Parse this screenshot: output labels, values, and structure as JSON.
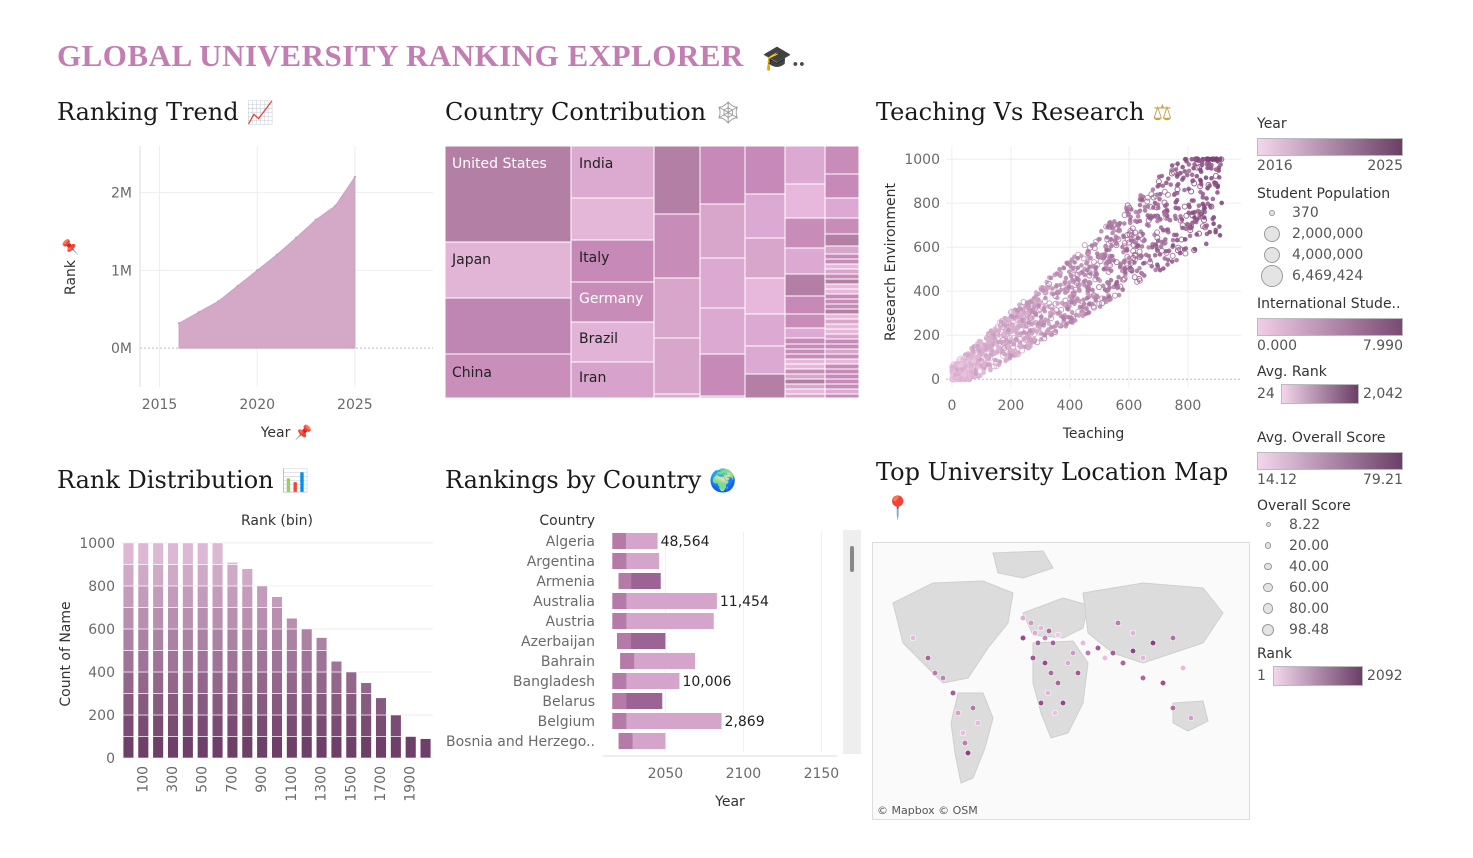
{
  "dashboard": {
    "title": "GLOBAL UNIVERSITY RANKING EXPLORER",
    "title_suffix": "🎓..",
    "brand_color": "#c27eb2"
  },
  "ranking_trend": {
    "title": "Ranking Trend",
    "icon": "chart-increasing-icon",
    "icon_glyph": "📈"
  },
  "country_contribution": {
    "title": "Country Contribution",
    "icon": "web-icon",
    "icon_glyph": "🕸"
  },
  "teaching_vs_research": {
    "title": "Teaching Vs Research",
    "icon": "balance-scale-icon",
    "icon_glyph": "⚖"
  },
  "rank_distribution": {
    "title": "Rank Distribution",
    "icon": "bar-chart-icon",
    "icon_glyph": "📊"
  },
  "rankings_by_country": {
    "title": "Rankings by Country",
    "icon": "globe-icon",
    "icon_glyph": "🌍"
  },
  "location_map": {
    "title": "Top University Location Map",
    "icon": "pushpin-icon",
    "icon_glyph": "📍",
    "attribution": "© Mapbox © OSM"
  },
  "legend": {
    "year": {
      "title": "Year",
      "min": "2016",
      "max": "2025"
    },
    "student_population": {
      "title": "Student Population",
      "values": [
        "370",
        "2,000,000",
        "4,000,000",
        "6,469,424"
      ]
    },
    "international_students": {
      "title": "International Stude..",
      "min": "0.000",
      "max": "7.990"
    },
    "avg_rank": {
      "title": "Avg. Rank",
      "min": "24",
      "max": "2,042"
    },
    "avg_overall_score": {
      "title": "Avg. Overall Score",
      "min": "14.12",
      "max": "79.21"
    },
    "overall_score": {
      "title": "Overall Score",
      "values": [
        "8.22",
        "20.00",
        "40.00",
        "60.00",
        "80.00",
        "98.48"
      ]
    },
    "rank": {
      "title": "Rank",
      "min": "1",
      "max": "2092"
    }
  },
  "chart_data": [
    {
      "id": "ranking-trend",
      "type": "area",
      "xlabel": "Year",
      "ylabel": "Rank",
      "x": [
        2016,
        2017,
        2018,
        2019,
        2020,
        2021,
        2022,
        2023,
        2024,
        2025
      ],
      "values": [
        320000,
        460000,
        600000,
        800000,
        1000000,
        1200000,
        1420000,
        1650000,
        1830000,
        2200000
      ],
      "xticks": [
        "2015",
        "2020",
        "2025"
      ],
      "yticks": [
        "0M",
        "1M",
        "2M"
      ],
      "xlim": [
        2014,
        2029
      ],
      "ylim": [
        -500000,
        2600000
      ]
    },
    {
      "id": "country-contribution",
      "type": "treemap",
      "labels": [
        "United States",
        "India",
        "Japan",
        "Italy",
        "Germany",
        "Brazil",
        "China",
        "Iran"
      ],
      "colors": [
        "#b37fa4",
        "#d9a6cb",
        "#e8b8dc",
        "#c689b8",
        "#dba9d1",
        "#c78db8"
      ]
    },
    {
      "id": "teaching-vs-research",
      "type": "scatter",
      "xlabel": "Teaching",
      "ylabel": "Research Environment",
      "xticks": [
        "0",
        "200",
        "400",
        "600",
        "800"
      ],
      "yticks": [
        "0",
        "200",
        "400",
        "600",
        "800",
        "1000"
      ],
      "xlim": [
        -20,
        980
      ],
      "ylim": [
        -40,
        1060
      ]
    },
    {
      "id": "rank-distribution",
      "type": "bar",
      "title": "Rank (bin)",
      "ylabel": "Count of Name",
      "categories": [
        "0",
        "100",
        "200",
        "300",
        "400",
        "500",
        "600",
        "700",
        "800",
        "900",
        "1000",
        "1100",
        "1200",
        "1300",
        "1400",
        "1500",
        "1600",
        "1700",
        "1800",
        "1900",
        "2000"
      ],
      "xtick_labels": [
        "100",
        "300",
        "500",
        "700",
        "900",
        "1100",
        "1300",
        "1500",
        "1700",
        "1900"
      ],
      "values": [
        1000,
        1000,
        1000,
        1000,
        1000,
        1000,
        1000,
        910,
        880,
        800,
        750,
        650,
        600,
        560,
        450,
        400,
        350,
        280,
        200,
        100,
        90
      ],
      "yticks": [
        "0",
        "200",
        "400",
        "600",
        "800",
        "1000"
      ],
      "ylim": [
        0,
        1060
      ]
    },
    {
      "id": "rankings-by-country",
      "type": "bar",
      "orientation": "horizontal",
      "header": "Country",
      "xlabel": "Year",
      "categories": [
        "Algeria",
        "Argentina",
        "Armenia",
        "Australia",
        "Austria",
        "Azerbaijan",
        "Bahrain",
        "Bangladesh",
        "Belarus",
        "Belgium",
        "Bosnia and Herzego.."
      ],
      "start": [
        2016,
        2016,
        2020,
        2016,
        2016,
        2019,
        2021,
        2016,
        2016,
        2016,
        2020
      ],
      "end": [
        2045,
        2046,
        2047,
        2083,
        2081,
        2050,
        2069,
        2059,
        2048,
        2086,
        2050
      ],
      "labels": [
        "48,564",
        "",
        "",
        "11,454",
        "",
        "",
        "",
        "10,006",
        "",
        "2,869",
        ""
      ],
      "xticks": [
        "2050",
        "2100",
        "2150"
      ],
      "xlim": [
        2010,
        2160
      ]
    }
  ]
}
